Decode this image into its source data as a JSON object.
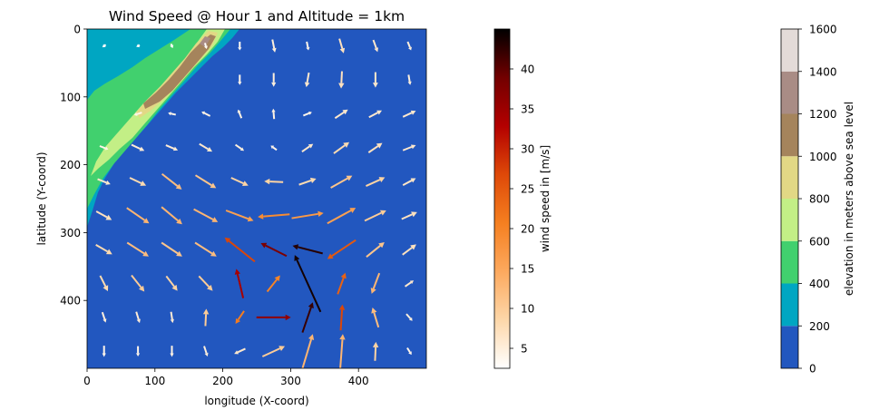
{
  "chart_data": {
    "type": "quiver",
    "title": "Wind Speed @ Hour 1 and Altitude = 1km",
    "xlabel": "longitude (X-coord)",
    "ylabel": "latitude (Y-coord)",
    "xlim": [
      0,
      500
    ],
    "ylim": [
      500,
      0
    ],
    "xticks": [
      0,
      100,
      200,
      300,
      400
    ],
    "yticks": [
      0,
      100,
      200,
      300,
      400
    ],
    "wind_colorbar": {
      "label": "wind speed in [m/s]",
      "range": [
        2.5,
        45
      ],
      "ticks": [
        5,
        10,
        15,
        20,
        25,
        30,
        35,
        40
      ],
      "colormap": [
        "#ffffff",
        "#fdd7a9",
        "#fda95e",
        "#f57f20",
        "#de4908",
        "#b30000",
        "#720000",
        "#000000"
      ]
    },
    "elevation_colorbar": {
      "label": "elevation in meters above sea level",
      "ticks": [
        0,
        200,
        400,
        600,
        800,
        1000,
        1200,
        1400,
        1600
      ],
      "levels": [
        {
          "from": 0,
          "to": 200,
          "color": "#2257bf"
        },
        {
          "from": 200,
          "to": 400,
          "color": "#00a6c2"
        },
        {
          "from": 400,
          "to": 600,
          "color": "#41d06e"
        },
        {
          "from": 600,
          "to": 800,
          "color": "#c3ef86"
        },
        {
          "from": 800,
          "to": 1000,
          "color": "#e2d885"
        },
        {
          "from": 1000,
          "to": 1200,
          "color": "#a5845c"
        },
        {
          "from": 1200,
          "to": 1400,
          "color": "#a98c85"
        },
        {
          "from": 1400,
          "to": 1600,
          "color": "#e3dbd8"
        }
      ]
    },
    "wind_vectors": [
      {
        "x": 25,
        "y": 25,
        "u": -0.4,
        "v": -0.3,
        "speed": 2.6
      },
      {
        "x": 75,
        "y": 25,
        "u": -0.4,
        "v": -0.2,
        "speed": 2.6
      },
      {
        "x": 125,
        "y": 25,
        "u": 0.2,
        "v": -0.5,
        "speed": 2.8
      },
      {
        "x": 175,
        "y": 25,
        "u": 0.2,
        "v": -0.7,
        "speed": 3
      },
      {
        "x": 225,
        "y": 25,
        "u": 0.0,
        "v": -1.0,
        "speed": 3.5
      },
      {
        "x": 275,
        "y": 25,
        "u": 0.3,
        "v": -1.5,
        "speed": 5
      },
      {
        "x": 325,
        "y": 25,
        "u": 0.2,
        "v": -1.0,
        "speed": 4
      },
      {
        "x": 375,
        "y": 25,
        "u": 0.5,
        "v": -1.7,
        "speed": 7
      },
      {
        "x": 425,
        "y": 25,
        "u": 0.5,
        "v": -1.4,
        "speed": 6
      },
      {
        "x": 475,
        "y": 25,
        "u": 0.4,
        "v": -1.0,
        "speed": 5
      },
      {
        "x": 225,
        "y": 75,
        "u": 0.0,
        "v": -1.2,
        "speed": 4
      },
      {
        "x": 275,
        "y": 75,
        "u": 0.0,
        "v": -1.6,
        "speed": 5
      },
      {
        "x": 325,
        "y": 75,
        "u": -0.3,
        "v": -1.7,
        "speed": 6
      },
      {
        "x": 375,
        "y": 75,
        "u": -0.1,
        "v": -2.0,
        "speed": 7
      },
      {
        "x": 425,
        "y": 75,
        "u": 0.0,
        "v": -1.8,
        "speed": 6
      },
      {
        "x": 475,
        "y": 75,
        "u": 0.2,
        "v": -1.2,
        "speed": 5
      },
      {
        "x": 75,
        "y": 125,
        "u": -0.9,
        "v": -0.3,
        "speed": 4
      },
      {
        "x": 125,
        "y": 125,
        "u": -0.9,
        "v": 0.2,
        "speed": 4
      },
      {
        "x": 175,
        "y": 125,
        "u": -1.0,
        "v": 0.5,
        "speed": 4.5
      },
      {
        "x": 225,
        "y": 125,
        "u": -0.4,
        "v": 1.0,
        "speed": 4.5
      },
      {
        "x": 275,
        "y": 125,
        "u": -0.1,
        "v": 1.2,
        "speed": 4.5
      },
      {
        "x": 325,
        "y": 125,
        "u": 1.0,
        "v": 0.4,
        "speed": 4
      },
      {
        "x": 375,
        "y": 125,
        "u": 1.5,
        "v": 1.0,
        "speed": 6
      },
      {
        "x": 425,
        "y": 125,
        "u": 1.5,
        "v": 0.8,
        "speed": 6
      },
      {
        "x": 475,
        "y": 125,
        "u": 1.5,
        "v": 0.7,
        "speed": 6
      },
      {
        "x": 25,
        "y": 175,
        "u": 1.0,
        "v": -0.4,
        "speed": 4
      },
      {
        "x": 75,
        "y": 175,
        "u": 1.5,
        "v": -0.7,
        "speed": 5.5
      },
      {
        "x": 125,
        "y": 175,
        "u": 1.4,
        "v": -0.6,
        "speed": 5.5
      },
      {
        "x": 175,
        "y": 175,
        "u": 1.5,
        "v": -0.9,
        "speed": 6
      },
      {
        "x": 225,
        "y": 175,
        "u": 1.0,
        "v": -0.7,
        "speed": 5
      },
      {
        "x": 275,
        "y": 175,
        "u": -0.7,
        "v": 0.5,
        "speed": 4
      },
      {
        "x": 325,
        "y": 175,
        "u": 1.3,
        "v": 0.9,
        "speed": 6
      },
      {
        "x": 375,
        "y": 175,
        "u": 1.8,
        "v": 1.3,
        "speed": 8
      },
      {
        "x": 425,
        "y": 175,
        "u": 1.6,
        "v": 1.1,
        "speed": 7
      },
      {
        "x": 475,
        "y": 175,
        "u": 1.5,
        "v": 0.6,
        "speed": 6
      },
      {
        "x": 25,
        "y": 225,
        "u": 1.5,
        "v": -0.6,
        "speed": 6
      },
      {
        "x": 75,
        "y": 225,
        "u": 1.9,
        "v": -0.9,
        "speed": 8
      },
      {
        "x": 125,
        "y": 225,
        "u": 2.3,
        "v": -1.8,
        "speed": 12
      },
      {
        "x": 175,
        "y": 225,
        "u": 2.4,
        "v": -1.5,
        "speed": 11
      },
      {
        "x": 225,
        "y": 225,
        "u": 2.0,
        "v": -0.9,
        "speed": 9
      },
      {
        "x": 275,
        "y": 225,
        "u": -2.2,
        "v": 0.1,
        "speed": 9
      },
      {
        "x": 325,
        "y": 225,
        "u": 2.0,
        "v": 0.7,
        "speed": 8
      },
      {
        "x": 375,
        "y": 225,
        "u": 2.5,
        "v": 1.4,
        "speed": 11
      },
      {
        "x": 425,
        "y": 225,
        "u": 2.2,
        "v": 1.0,
        "speed": 9
      },
      {
        "x": 475,
        "y": 225,
        "u": 1.5,
        "v": 0.8,
        "speed": 6.5
      },
      {
        "x": 25,
        "y": 275,
        "u": 1.8,
        "v": -1.0,
        "speed": 7
      },
      {
        "x": 75,
        "y": 275,
        "u": 2.6,
        "v": -1.8,
        "speed": 13
      },
      {
        "x": 125,
        "y": 275,
        "u": 2.4,
        "v": -2.0,
        "speed": 13
      },
      {
        "x": 175,
        "y": 275,
        "u": 2.8,
        "v": -1.5,
        "speed": 13
      },
      {
        "x": 225,
        "y": 275,
        "u": 3.2,
        "v": -1.2,
        "speed": 16
      },
      {
        "x": 275,
        "y": 275,
        "u": -3.7,
        "v": -0.3,
        "speed": 19
      },
      {
        "x": 325,
        "y": 275,
        "u": 3.7,
        "v": 0.6,
        "speed": 17
      },
      {
        "x": 375,
        "y": 275,
        "u": 3.3,
        "v": 1.8,
        "speed": 16
      },
      {
        "x": 425,
        "y": 275,
        "u": 2.5,
        "v": 1.2,
        "speed": 10
      },
      {
        "x": 475,
        "y": 275,
        "u": 1.8,
        "v": 0.8,
        "speed": 7
      },
      {
        "x": 25,
        "y": 325,
        "u": 1.9,
        "v": -1.1,
        "speed": 8
      },
      {
        "x": 75,
        "y": 325,
        "u": 2.5,
        "v": -1.6,
        "speed": 12
      },
      {
        "x": 125,
        "y": 325,
        "u": 2.4,
        "v": -1.6,
        "speed": 11
      },
      {
        "x": 175,
        "y": 325,
        "u": 2.5,
        "v": -1.6,
        "speed": 12
      },
      {
        "x": 225,
        "y": 325,
        "u": -3.5,
        "v": 2.8,
        "speed": 27
      },
      {
        "x": 275,
        "y": 325,
        "u": -3.0,
        "v": 1.5,
        "speed": 38
      },
      {
        "x": 325,
        "y": 325,
        "u": -3.5,
        "v": 0.9,
        "speed": 43
      },
      {
        "x": 375,
        "y": 325,
        "u": -3.3,
        "v": -2.2,
        "speed": 25
      },
      {
        "x": 425,
        "y": 325,
        "u": 2.1,
        "v": 1.7,
        "speed": 11
      },
      {
        "x": 475,
        "y": 325,
        "u": 1.6,
        "v": 1.2,
        "speed": 7
      },
      {
        "x": 25,
        "y": 375,
        "u": 0.9,
        "v": -1.8,
        "speed": 8
      },
      {
        "x": 75,
        "y": 375,
        "u": 1.5,
        "v": -1.9,
        "speed": 10
      },
      {
        "x": 125,
        "y": 375,
        "u": 1.3,
        "v": -1.7,
        "speed": 9
      },
      {
        "x": 175,
        "y": 375,
        "u": 1.6,
        "v": -1.7,
        "speed": 10
      },
      {
        "x": 225,
        "y": 375,
        "u": -0.8,
        "v": 3.4,
        "speed": 34
      },
      {
        "x": 275,
        "y": 375,
        "u": 1.5,
        "v": 1.9,
        "speed": 20
      },
      {
        "x": 325,
        "y": 375,
        "u": -3.0,
        "v": 6.6,
        "speed": 44
      },
      {
        "x": 375,
        "y": 375,
        "u": 0.9,
        "v": 2.5,
        "speed": 24
      },
      {
        "x": 425,
        "y": 375,
        "u": -0.9,
        "v": -2.4,
        "speed": 13
      },
      {
        "x": 475,
        "y": 375,
        "u": 1.0,
        "v": 0.7,
        "speed": 6
      },
      {
        "x": 25,
        "y": 425,
        "u": 0.4,
        "v": -1.2,
        "speed": 5
      },
      {
        "x": 75,
        "y": 425,
        "u": 0.4,
        "v": -1.3,
        "speed": 5.5
      },
      {
        "x": 125,
        "y": 425,
        "u": 0.2,
        "v": -1.3,
        "speed": 5.5
      },
      {
        "x": 175,
        "y": 425,
        "u": 0.1,
        "v": 2.0,
        "speed": 10
      },
      {
        "x": 225,
        "y": 425,
        "u": -1.0,
        "v": -1.5,
        "speed": 21
      },
      {
        "x": 275,
        "y": 425,
        "u": 4.0,
        "v": 0.0,
        "speed": 36
      },
      {
        "x": 325,
        "y": 425,
        "u": 1.2,
        "v": 3.5,
        "speed": 42
      },
      {
        "x": 375,
        "y": 425,
        "u": 0.2,
        "v": 3.0,
        "speed": 27
      },
      {
        "x": 425,
        "y": 425,
        "u": -0.7,
        "v": 2.3,
        "speed": 12
      },
      {
        "x": 475,
        "y": 425,
        "u": 0.7,
        "v": -0.8,
        "speed": 5
      },
      {
        "x": 25,
        "y": 475,
        "u": 0.0,
        "v": -1.3,
        "speed": 4
      },
      {
        "x": 75,
        "y": 475,
        "u": 0.0,
        "v": -1.2,
        "speed": 4
      },
      {
        "x": 125,
        "y": 475,
        "u": 0.0,
        "v": -1.3,
        "speed": 4.5
      },
      {
        "x": 175,
        "y": 475,
        "u": 0.4,
        "v": -1.2,
        "speed": 5
      },
      {
        "x": 225,
        "y": 475,
        "u": -1.3,
        "v": -0.6,
        "speed": 6
      },
      {
        "x": 275,
        "y": 475,
        "u": 2.6,
        "v": 1.2,
        "speed": 10
      },
      {
        "x": 325,
        "y": 475,
        "u": 1.2,
        "v": 4.0,
        "speed": 13
      },
      {
        "x": 375,
        "y": 475,
        "u": 0.3,
        "v": 4.0,
        "speed": 13
      },
      {
        "x": 425,
        "y": 475,
        "u": 0.1,
        "v": 2.2,
        "speed": 9
      },
      {
        "x": 475,
        "y": 475,
        "u": 0.5,
        "v": -0.8,
        "speed": 4
      }
    ]
  }
}
